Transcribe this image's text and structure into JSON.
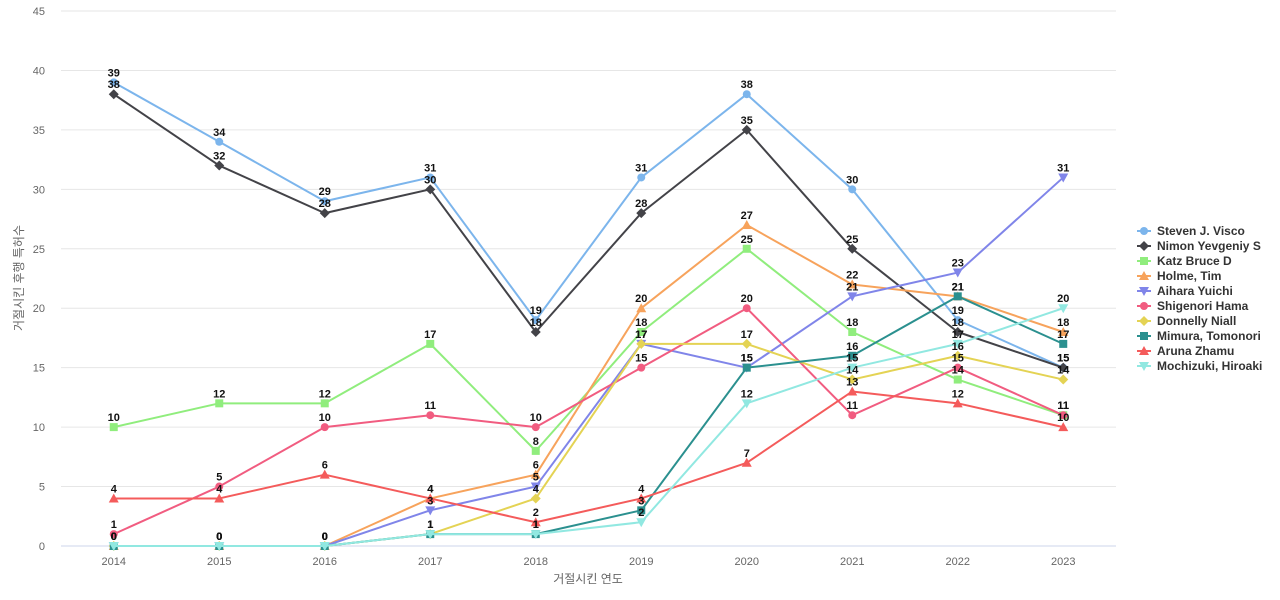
{
  "chart_data": {
    "type": "line",
    "title": "",
    "xlabel": "거절시킨 연도",
    "ylabel": "거절시킨 후행 특허수",
    "x": [
      "2014",
      "2015",
      "2016",
      "2017",
      "2018",
      "2019",
      "2020",
      "2021",
      "2022",
      "2023"
    ],
    "ylim": [
      0,
      45
    ],
    "yticks": [
      0,
      5,
      10,
      15,
      20,
      25,
      30,
      35,
      40,
      45
    ],
    "grid": true,
    "legend_position": "right",
    "series": [
      {
        "name": "Steven J. Visco",
        "color": "#7cb5ec",
        "marker": "circle",
        "values": [
          39,
          34,
          29,
          31,
          19,
          31,
          38,
          30,
          19,
          15
        ]
      },
      {
        "name": "Nimon Yevgeniy S",
        "color": "#434348",
        "marker": "diamond",
        "values": [
          38,
          32,
          28,
          30,
          18,
          28,
          35,
          25,
          18,
          15
        ]
      },
      {
        "name": "Katz Bruce D",
        "color": "#90ed7d",
        "marker": "square",
        "values": [
          10,
          12,
          12,
          17,
          8,
          18,
          25,
          18,
          14,
          11
        ]
      },
      {
        "name": "Holme, Tim",
        "color": "#f7a35c",
        "marker": "triangle",
        "values": [
          0,
          0,
          0,
          4,
          6,
          20,
          27,
          22,
          21,
          18
        ]
      },
      {
        "name": "Aihara Yuichi",
        "color": "#8085e9",
        "marker": "triangle-down",
        "values": [
          0,
          0,
          0,
          3,
          5,
          17,
          15,
          21,
          23,
          31
        ]
      },
      {
        "name": "Shigenori Hama",
        "color": "#f15c80",
        "marker": "circle",
        "values": [
          1,
          5,
          10,
          11,
          10,
          15,
          20,
          11,
          15,
          11
        ]
      },
      {
        "name": "Donnelly Niall",
        "color": "#e4d354",
        "marker": "diamond",
        "values": [
          0,
          0,
          0,
          1,
          4,
          17,
          17,
          14,
          16,
          14
        ]
      },
      {
        "name": "Mimura, Tomonori",
        "color": "#2b908f",
        "marker": "square",
        "values": [
          0,
          0,
          0,
          1,
          1,
          3,
          15,
          16,
          21,
          17
        ]
      },
      {
        "name": "Aruna Zhamu",
        "color": "#f45b5b",
        "marker": "triangle",
        "values": [
          4,
          4,
          6,
          4,
          2,
          4,
          7,
          13,
          12,
          10
        ]
      },
      {
        "name": "Mochizuki, Hiroaki",
        "color": "#91e8e1",
        "marker": "triangle-down",
        "values": [
          0,
          0,
          0,
          1,
          1,
          2,
          12,
          15,
          17,
          20
        ]
      }
    ]
  }
}
